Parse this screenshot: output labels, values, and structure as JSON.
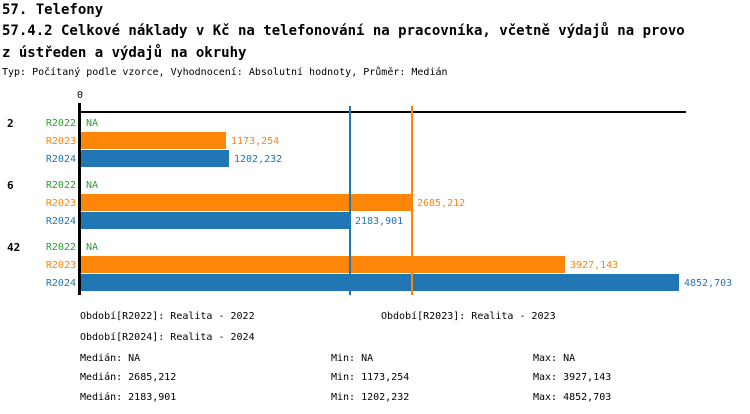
{
  "header": {
    "title": "57. Telefony",
    "subtitle_line1": "57.4.2 Celkové náklady v Kč na telefonování na pracovníka, včetně výdajů na provo",
    "subtitle_line2": "z ústředen a výdajů na okruhy",
    "meta": "Typ: Počítaný podle vzorce, Vyhodnocení: Absolutní hodnoty, Průměr: Medián"
  },
  "colors": {
    "r2022": "#2AA12B",
    "r2023": "#FD850A",
    "r2024": "#2176B5",
    "axis": "#000000"
  },
  "chart_data": {
    "type": "bar",
    "orientation": "horizontal",
    "title": "57.4.2 Celkové náklady v Kč na telefonování na pracovníka, včetně výdajů na provoz ústředen a výdajů na okruhy",
    "axis_zero_label": "0",
    "xlim": [
      0,
      4900
    ],
    "grid": false,
    "groups": [
      "2",
      "6",
      "42"
    ],
    "series": [
      {
        "name": "R2022",
        "color_key": "r2022",
        "values": [
          null,
          null,
          null
        ],
        "labels": [
          "NA",
          "NA",
          "NA"
        ]
      },
      {
        "name": "R2023",
        "color_key": "r2023",
        "values": [
          1173.254,
          2685.212,
          3927.143
        ],
        "labels": [
          "1173,254",
          "2685,212",
          "3927,143"
        ]
      },
      {
        "name": "R2024",
        "color_key": "r2024",
        "values": [
          1202.232,
          2183.901,
          4852.703
        ],
        "labels": [
          "1202,232",
          "2183,901",
          "4852,703"
        ]
      }
    ],
    "median_lines": [
      {
        "series": "R2023",
        "value": 2685.212,
        "color_key": "r2023"
      },
      {
        "series": "R2024",
        "value": 2183.901,
        "color_key": "r2024"
      }
    ]
  },
  "legend": {
    "r2022": "Období[R2022]: Realita - 2022",
    "r2023": "Období[R2023]: Realita - 2023",
    "r2024": "Období[R2024]: Realita - 2024"
  },
  "stats": {
    "r2022": {
      "median": "Medián: NA",
      "min": "Min: NA",
      "max": "Max: NA"
    },
    "r2023": {
      "median": "Medián: 2685,212",
      "min": "Min: 1173,254",
      "max": "Max: 3927,143"
    },
    "r2024": {
      "median": "Medián: 2183,901",
      "min": "Min: 1202,232",
      "max": "Max: 4852,703"
    }
  }
}
